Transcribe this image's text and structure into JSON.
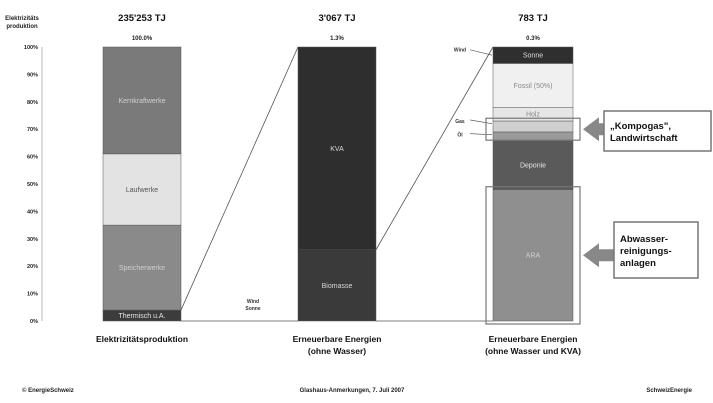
{
  "chart_data": {
    "type": "bar",
    "stacked": true,
    "grid": false,
    "ylim": [
      0,
      100
    ],
    "y_axis_label_lines": [
      "Elektrizitäts",
      "produktion"
    ],
    "y_ticks": [
      "0%",
      "10%",
      "20%",
      "30%",
      "40%",
      "50%",
      "60%",
      "70%",
      "80%",
      "90%",
      "100%"
    ],
    "bars": [
      {
        "id": "bar1",
        "total": "235'253 TJ",
        "share": "100.0%",
        "label_lines": [
          "Elektrizitätsproduktion"
        ],
        "segments": [
          {
            "name": "Thermisch",
            "label": "Thermisch u.A.",
            "from": 0,
            "to": 4,
            "color": "#3c3c3c",
            "text_color": "#e6e6e6"
          },
          {
            "name": "Speicherwerke",
            "label": "Speicherwerke",
            "from": 4,
            "to": 35,
            "color": "#8a8a8a",
            "text_color": "#cfcfcf"
          },
          {
            "name": "Laufwerke",
            "label": "Laufwerke",
            "from": 35,
            "to": 61,
            "color": "#e3e3e3",
            "text_color": "#555555"
          },
          {
            "name": "Kernkraftwerke",
            "label": "Kernkraftwerke",
            "from": 61,
            "to": 100,
            "color": "#7a7a7a",
            "text_color": "#d0d0d0"
          }
        ]
      },
      {
        "id": "bar2",
        "total": "3'067 TJ",
        "share": "1.3%",
        "label_lines": [
          "Erneuerbare Energien",
          "(ohne Wasser)"
        ],
        "side_label_lines": [
          "Wind",
          "Sonne"
        ],
        "segments": [
          {
            "name": "Biomasse",
            "label": "Biomasse",
            "from": 0,
            "to": 26,
            "color": "#3a3a3a",
            "text_color": "#d8d8d8"
          },
          {
            "name": "KVA",
            "label": "KVA",
            "from": 26,
            "to": 100,
            "color": "#2e2e2e",
            "text_color": "#d8d8d8"
          }
        ]
      },
      {
        "id": "bar3",
        "total": "783 TJ",
        "share": "0.3%",
        "label_lines": [
          "Erneuerbare Energien",
          "(ohne Wasser und KVA)"
        ],
        "side_labels": [
          "Wind",
          "Gas",
          "Öl"
        ],
        "segments": [
          {
            "name": "ARA",
            "label": "ARA",
            "from": 0,
            "to": 48,
            "color": "#8f8f8f",
            "text_color": "#d0d0d0"
          },
          {
            "name": "Deponie",
            "label": "Deponie",
            "from": 48,
            "to": 66,
            "color": "#5a5a5a",
            "text_color": "#e8e8e8"
          },
          {
            "name": "Gas",
            "label": "",
            "from": 66,
            "to": 69,
            "color": "#9b9b9b",
            "text_color": "#333333"
          },
          {
            "name": "Landwirtschaft",
            "label": "",
            "from": 69,
            "to": 73,
            "color": "#cfcfcf",
            "text_color": "#333333"
          },
          {
            "name": "Holz",
            "label": "Holz",
            "from": 73,
            "to": 78,
            "color": "#e6e6e6",
            "text_color": "#888888"
          },
          {
            "name": "Fossil (50%)",
            "label": "Fossil (50%)",
            "from": 78,
            "to": 94,
            "color": "#f0f0f0",
            "text_color": "#8a8a8a"
          },
          {
            "name": "Sonne",
            "label": "Sonne",
            "from": 94,
            "to": 100,
            "color": "#2f2f2f",
            "text_color": "#dddddd"
          }
        ]
      }
    ],
    "callouts": [
      {
        "text_lines": [
          "„Kompogas\",",
          "Landwirtschaft"
        ]
      },
      {
        "text_lines": [
          "Abwasser-",
          "reinigungs-",
          "anlagen"
        ]
      }
    ]
  },
  "footer": {
    "left": "© EnergieSchweiz",
    "center": "Glashaus-Anmerkungen, 7. Juli 2007",
    "right": "SchweizEnergie"
  }
}
